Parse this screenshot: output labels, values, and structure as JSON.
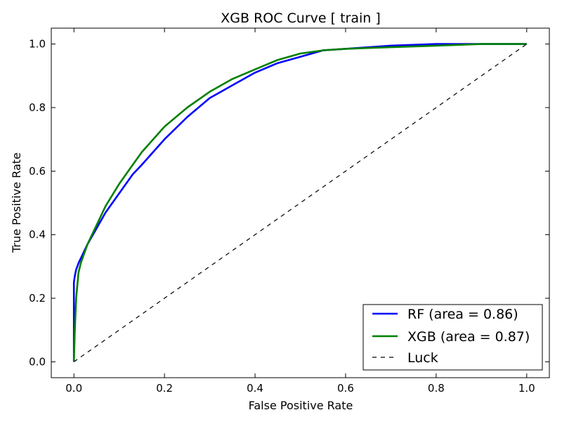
{
  "chart_data": {
    "type": "line",
    "title": "XGB ROC Curve [ train ]",
    "xlabel": "False Positive Rate",
    "ylabel": "True Positive Rate",
    "xlim": [
      -0.05,
      1.05
    ],
    "ylim": [
      -0.05,
      1.05
    ],
    "x_ticks": [
      "0.0",
      "0.2",
      "0.4",
      "0.6",
      "0.8",
      "1.0"
    ],
    "y_ticks": [
      "0.0",
      "0.2",
      "0.4",
      "0.6",
      "0.8",
      "1.0"
    ],
    "grid": false,
    "legend_position": "bottom-right",
    "series": [
      {
        "name": "RF (area = 0.86)",
        "color": "#0000ff",
        "style": "solid",
        "x": [
          0.0,
          0.0,
          0.002,
          0.005,
          0.01,
          0.02,
          0.03,
          0.05,
          0.07,
          0.1,
          0.13,
          0.15,
          0.2,
          0.25,
          0.3,
          0.35,
          0.4,
          0.45,
          0.5,
          0.55,
          0.6,
          0.7,
          0.8,
          0.9,
          1.0
        ],
        "y": [
          0.0,
          0.25,
          0.27,
          0.29,
          0.31,
          0.34,
          0.37,
          0.42,
          0.47,
          0.53,
          0.59,
          0.62,
          0.7,
          0.77,
          0.83,
          0.87,
          0.91,
          0.94,
          0.96,
          0.98,
          0.985,
          0.995,
          1.0,
          1.0,
          1.0
        ]
      },
      {
        "name": "XGB (area = 0.87)",
        "color": "#008000",
        "style": "solid",
        "x": [
          0.0,
          0.002,
          0.005,
          0.01,
          0.015,
          0.02,
          0.03,
          0.05,
          0.07,
          0.1,
          0.13,
          0.15,
          0.2,
          0.25,
          0.3,
          0.35,
          0.4,
          0.45,
          0.5,
          0.55,
          0.6,
          0.7,
          0.8,
          0.9,
          1.0
        ],
        "y": [
          0.0,
          0.1,
          0.2,
          0.28,
          0.31,
          0.33,
          0.37,
          0.43,
          0.49,
          0.56,
          0.62,
          0.66,
          0.74,
          0.8,
          0.85,
          0.89,
          0.92,
          0.95,
          0.97,
          0.98,
          0.985,
          0.99,
          0.995,
          1.0,
          1.0
        ]
      },
      {
        "name": "Luck",
        "color": "#000000",
        "style": "dashed",
        "x": [
          0.0,
          1.0
        ],
        "y": [
          0.0,
          1.0
        ]
      }
    ]
  }
}
